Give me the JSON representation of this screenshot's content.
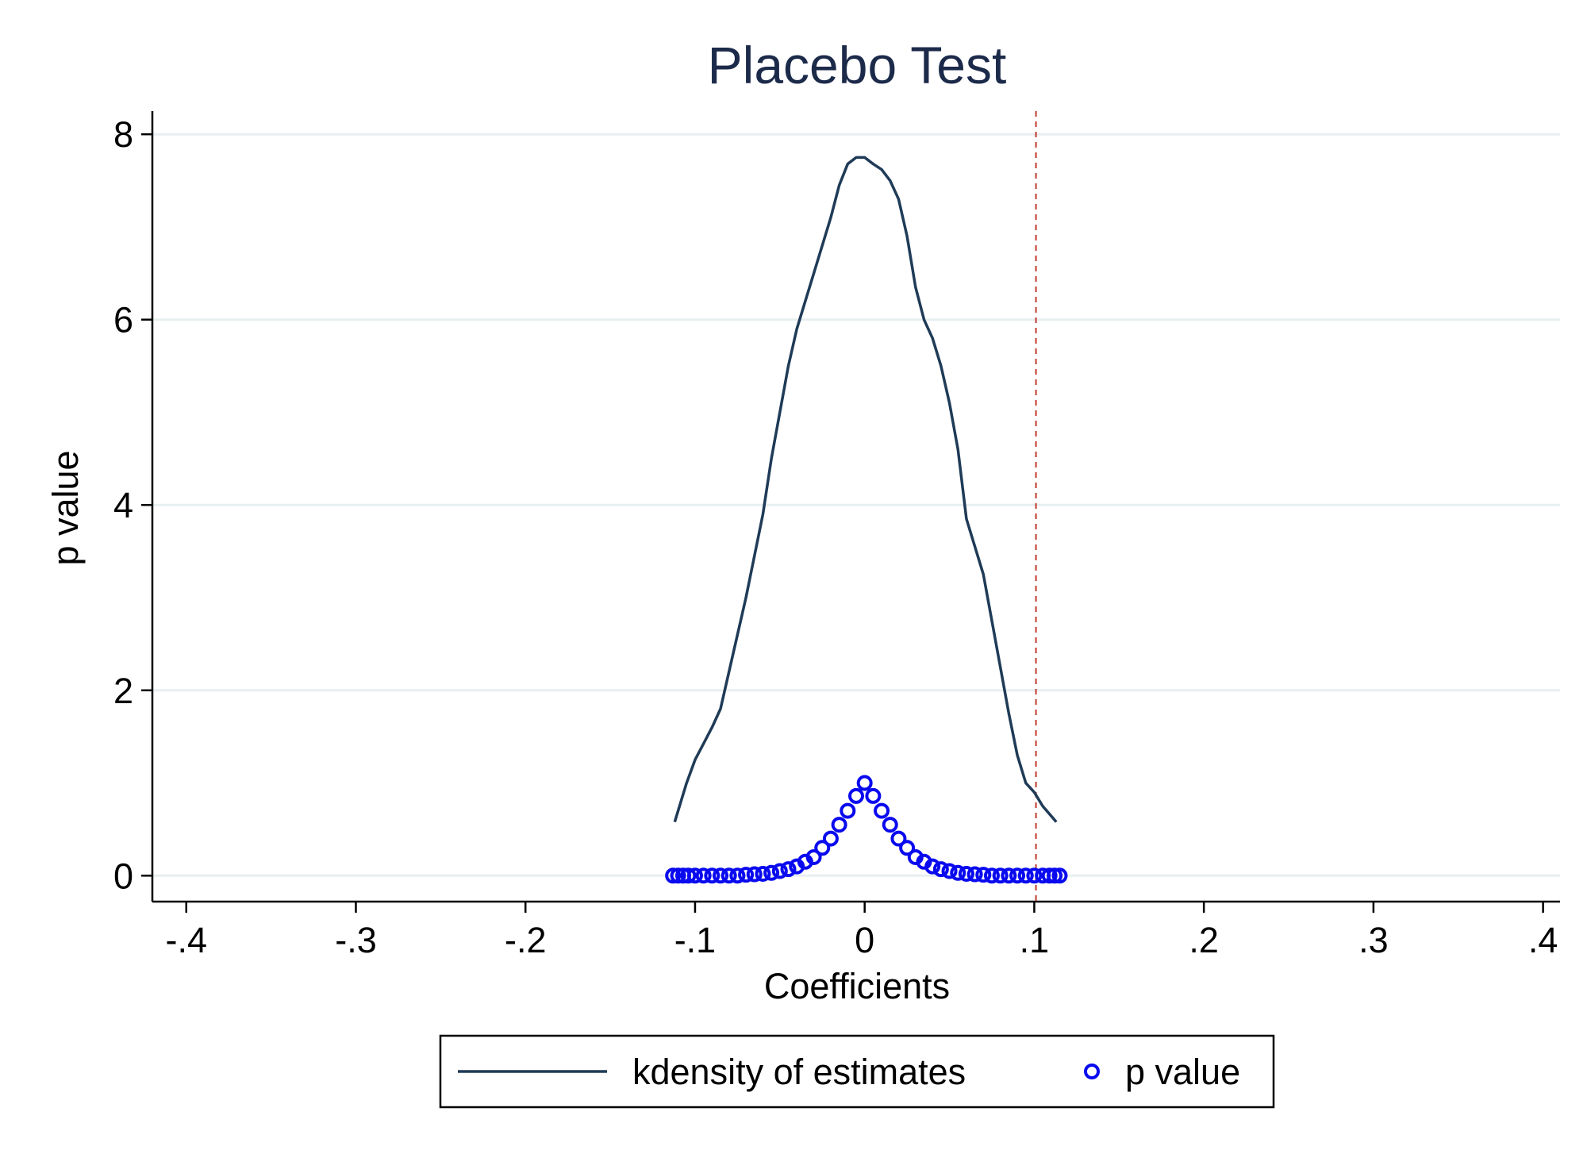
{
  "chart_data": {
    "type": "line",
    "title": "Placebo Test",
    "xlabel": "Coefficients",
    "ylabel": "p value",
    "xlim": [
      -0.42,
      0.41
    ],
    "ylim": [
      -0.28,
      8.25
    ],
    "x_ticks": [
      -0.4,
      -0.3,
      -0.2,
      -0.1,
      0,
      0.1,
      0.2,
      0.3,
      0.4
    ],
    "x_tick_labels": [
      "-.4",
      "-.3",
      "-.2",
      "-.1",
      "0",
      ".1",
      ".2",
      ".3",
      ".4"
    ],
    "y_ticks": [
      0,
      2,
      4,
      6,
      8
    ],
    "y_tick_labels": [
      "0",
      "2",
      "4",
      "6",
      "8"
    ],
    "grid": "horizontal",
    "reference_line": {
      "x": 0.101,
      "style": "dashed",
      "color": "#c0392b"
    },
    "series": [
      {
        "name": "kdensity of estimates",
        "kind": "line",
        "color": "#1f3b57",
        "x": [
          -0.112,
          -0.105,
          -0.1,
          -0.09,
          -0.085,
          -0.08,
          -0.07,
          -0.06,
          -0.055,
          -0.05,
          -0.045,
          -0.04,
          -0.035,
          -0.03,
          -0.02,
          -0.015,
          -0.01,
          -0.005,
          0,
          0.005,
          0.01,
          0.015,
          0.02,
          0.025,
          0.03,
          0.035,
          0.04,
          0.045,
          0.05,
          0.055,
          0.06,
          0.065,
          0.07,
          0.075,
          0.08,
          0.085,
          0.09,
          0.095,
          0.1,
          0.105,
          0.113
        ],
        "y": [
          0.58,
          1.0,
          1.25,
          1.6,
          1.8,
          2.2,
          3.0,
          3.9,
          4.5,
          5.0,
          5.5,
          5.9,
          6.2,
          6.5,
          7.1,
          7.45,
          7.68,
          7.75,
          7.75,
          7.68,
          7.62,
          7.5,
          7.3,
          6.9,
          6.35,
          6.0,
          5.8,
          5.5,
          5.1,
          4.6,
          3.85,
          3.55,
          3.25,
          2.75,
          2.25,
          1.75,
          1.3,
          1.0,
          0.9,
          0.75,
          0.58
        ]
      },
      {
        "name": "p value",
        "kind": "scatter",
        "color": "#0a0aef",
        "x": [
          -0.113,
          -0.11,
          -0.107,
          -0.104,
          -0.1,
          -0.095,
          -0.09,
          -0.085,
          -0.08,
          -0.075,
          -0.07,
          -0.065,
          -0.06,
          -0.055,
          -0.05,
          -0.045,
          -0.04,
          -0.035,
          -0.03,
          -0.025,
          -0.02,
          -0.015,
          -0.01,
          -0.005,
          0,
          0.005,
          0.01,
          0.015,
          0.02,
          0.025,
          0.03,
          0.035,
          0.04,
          0.045,
          0.05,
          0.055,
          0.06,
          0.065,
          0.07,
          0.075,
          0.08,
          0.085,
          0.09,
          0.095,
          0.1,
          0.105,
          0.109,
          0.112,
          0.115
        ],
        "y": [
          0.0,
          0.0,
          0.0,
          0.0,
          0.0,
          0.0,
          0.0,
          0.0,
          0.0,
          0.0,
          0.01,
          0.015,
          0.02,
          0.03,
          0.05,
          0.07,
          0.1,
          0.15,
          0.2,
          0.3,
          0.4,
          0.55,
          0.7,
          0.86,
          1.0,
          0.86,
          0.7,
          0.55,
          0.4,
          0.3,
          0.2,
          0.15,
          0.1,
          0.07,
          0.05,
          0.03,
          0.02,
          0.015,
          0.01,
          0.0,
          0.0,
          0.0,
          0.0,
          0.0,
          0.0,
          0.0,
          0.0,
          0.0,
          0.0
        ]
      }
    ],
    "legend": {
      "placement": "bottom-center",
      "entries": [
        "kdensity of estimates",
        "p value"
      ]
    }
  }
}
